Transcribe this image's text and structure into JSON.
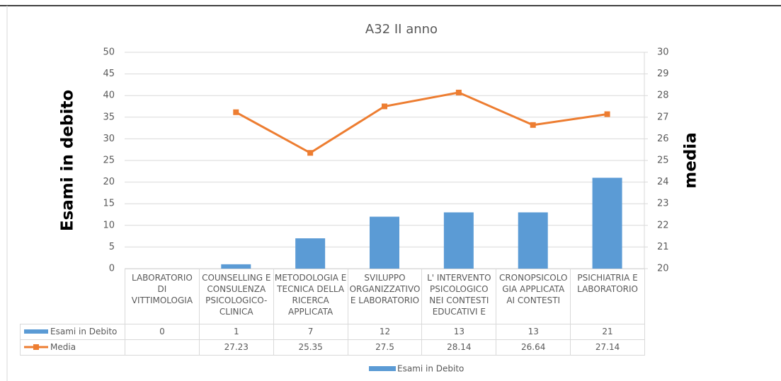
{
  "chart_data": {
    "type": "bar-line",
    "title": "A32 II anno",
    "y_label": "Esami in debito",
    "y2_label": "media",
    "categories": [
      "LABORATORIO DI VITTIMOLOGIA",
      "COUNSELLING E CONSULENZA PSICOLOGICO-CLINICA",
      "METODOLOGIA E TECNICA DELLA RICERCA APPLICATA",
      "SVILUPPO ORGANIZZATIVO E LABORATORIO",
      "L' INTERVENTO PSICOLOGICO NEI CONTESTI EDUCATIVI E",
      "CRONOPSICOLOGIA APPLICATA AI CONTESTI",
      "PSICHIATRIA E LABORATORIO"
    ],
    "series": [
      {
        "name": "Esami in Debito",
        "type": "bar",
        "color": "#5b9bd5",
        "values": [
          0,
          1,
          7,
          12,
          13,
          13,
          21
        ]
      },
      {
        "name": "Media",
        "type": "line",
        "color": "#ed7d31",
        "axis": "y2",
        "values": [
          null,
          27.23,
          25.35,
          27.5,
          28.14,
          26.64,
          27.14
        ]
      }
    ],
    "ylim": [
      0,
      50
    ],
    "yticks": [
      0,
      5,
      10,
      15,
      20,
      25,
      30,
      35,
      40,
      45,
      50
    ],
    "y2lim": [
      20,
      30
    ],
    "y2ticks": [
      20,
      21,
      22,
      23,
      24,
      25,
      26,
      27,
      28,
      29,
      30
    ],
    "grid": true,
    "legend": "bottom"
  }
}
